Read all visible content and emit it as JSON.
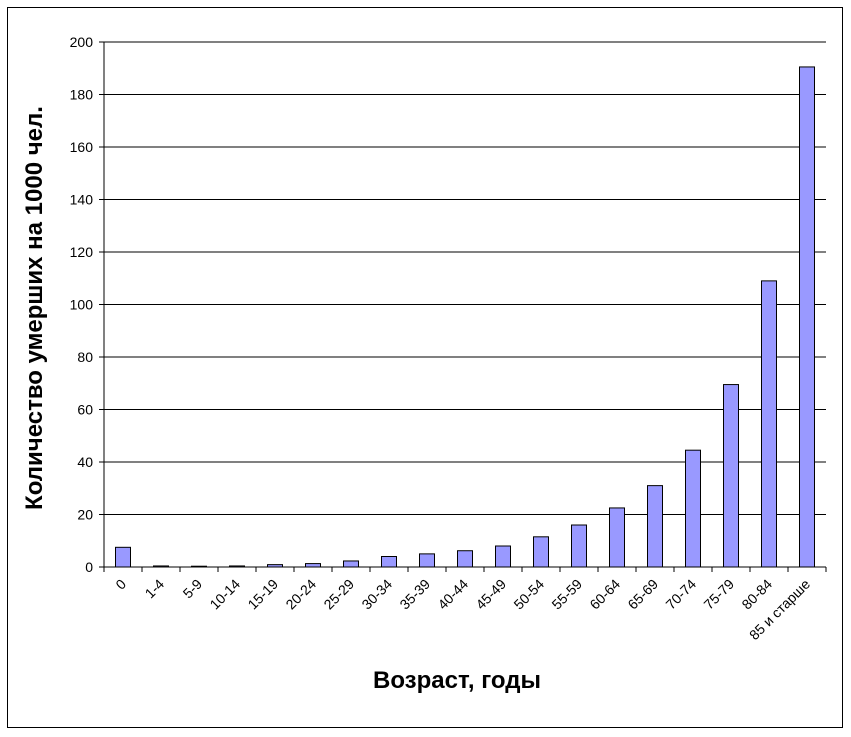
{
  "chart_data": {
    "type": "bar",
    "title": "",
    "xlabel": "Возраст, годы",
    "ylabel": "Количество умерших на 1000 чел.",
    "ylim": [
      0,
      200
    ],
    "yticks": [
      0,
      20,
      40,
      60,
      80,
      100,
      120,
      140,
      160,
      180,
      200
    ],
    "grid": true,
    "legend": "none",
    "bar_color": "#9999ff",
    "categories": [
      "0",
      "1-4",
      "5-9",
      "10-14",
      "15-19",
      "20-24",
      "25-29",
      "30-34",
      "35-39",
      "40-44",
      "45-49",
      "50-54",
      "55-59",
      "60-64",
      "65-69",
      "70-74",
      "75-79",
      "80-84",
      "85 и старше"
    ],
    "values": [
      7.5,
      0.4,
      0.3,
      0.4,
      0.9,
      1.3,
      2.3,
      4,
      5,
      6.2,
      8,
      11.5,
      16,
      22.5,
      31,
      44.5,
      69.5,
      109,
      190.5
    ]
  }
}
